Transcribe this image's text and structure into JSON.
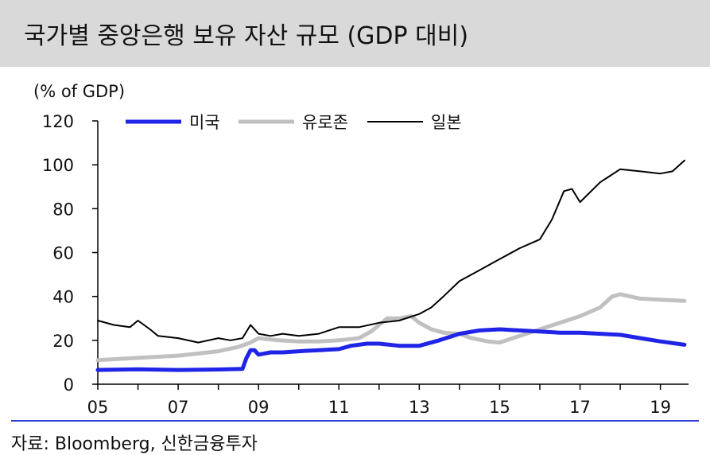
{
  "title": "국가별 중앙은행 보유 자산 규모 (GDP 대비)",
  "source": "자료: Bloomberg, 신한금융투자",
  "colors": {
    "title_bg": "#d9d9d9",
    "us": "#1f24e6",
    "eurozone": "#c0c0c0",
    "japan": "#000000",
    "footer_rule": "#2f3ed3"
  },
  "chart_data": {
    "type": "line",
    "ylabel": "(% of GDP)",
    "xlabel": "",
    "ylim": [
      0,
      120
    ],
    "xlim": [
      2005,
      2019.7
    ],
    "yticks": [
      0,
      20,
      40,
      60,
      80,
      100,
      120
    ],
    "xticks": [
      {
        "value": 2005,
        "label": "05"
      },
      {
        "value": 2007,
        "label": "07"
      },
      {
        "value": 2009,
        "label": "09"
      },
      {
        "value": 2011,
        "label": "11"
      },
      {
        "value": 2013,
        "label": "13"
      },
      {
        "value": 2015,
        "label": "15"
      },
      {
        "value": 2017,
        "label": "17"
      },
      {
        "value": 2019,
        "label": "19"
      }
    ],
    "grid": false,
    "legend_position": "top",
    "series": [
      {
        "name": "미국",
        "color": "#1f24e6",
        "x": [
          2005,
          2006,
          2007,
          2008,
          2008.6,
          2008.7,
          2008.8,
          2008.9,
          2009,
          2009.3,
          2009.6,
          2010,
          2010.5,
          2011,
          2011.3,
          2011.7,
          2012,
          2012.5,
          2013,
          2013.5,
          2014,
          2014.5,
          2015,
          2015.5,
          2016,
          2016.5,
          2017,
          2017.5,
          2018,
          2018.5,
          2019,
          2019.6
        ],
        "y": [
          6.5,
          6.8,
          6.5,
          6.7,
          7,
          12,
          15.5,
          15.5,
          13.5,
          14.5,
          14.5,
          15,
          15.5,
          16,
          17.5,
          18.5,
          18.5,
          17.5,
          17.5,
          20,
          23,
          24.5,
          25,
          24.5,
          24,
          23.5,
          23.5,
          23,
          22.5,
          21,
          19.5,
          18
        ]
      },
      {
        "name": "유로존",
        "color": "#c0c0c0",
        "x": [
          2005,
          2006,
          2007,
          2007.5,
          2008,
          2008.5,
          2008.8,
          2009,
          2009.5,
          2010,
          2010.5,
          2011,
          2011.5,
          2011.8,
          2012,
          2012.2,
          2012.5,
          2012.8,
          2013,
          2013.3,
          2013.6,
          2014,
          2014.3,
          2014.7,
          2015,
          2015.5,
          2016,
          2016.5,
          2017,
          2017.5,
          2017.8,
          2018,
          2018.5,
          2019,
          2019.6
        ],
        "y": [
          11,
          12,
          13,
          14,
          15,
          17,
          19,
          21,
          20,
          19.5,
          19.5,
          20,
          21,
          24,
          27,
          30,
          30,
          31,
          28,
          25,
          23.5,
          23,
          21,
          19.5,
          19,
          22,
          25,
          28,
          31,
          35,
          40,
          41,
          39,
          38.5,
          38
        ]
      },
      {
        "name": "일본",
        "color": "#000000",
        "x": [
          2005,
          2005.4,
          2005.8,
          2006,
          2006.3,
          2006.5,
          2007,
          2007.5,
          2008,
          2008.3,
          2008.6,
          2008.8,
          2009,
          2009.3,
          2009.6,
          2010,
          2010.5,
          2011,
          2011.5,
          2012,
          2012.5,
          2013,
          2013.3,
          2013.6,
          2014,
          2014.5,
          2015,
          2015.5,
          2016,
          2016.3,
          2016.6,
          2016.8,
          2017,
          2017.5,
          2018,
          2018.5,
          2019,
          2019.3,
          2019.6
        ],
        "y": [
          29,
          27,
          26,
          29,
          25,
          22,
          21,
          19,
          21,
          20,
          21,
          27,
          23,
          22,
          23,
          22,
          23,
          26,
          26,
          28,
          29,
          32,
          35,
          40,
          47,
          52,
          57,
          62,
          66,
          75,
          88,
          89,
          83,
          92,
          98,
          97,
          96,
          97,
          102
        ]
      }
    ]
  }
}
